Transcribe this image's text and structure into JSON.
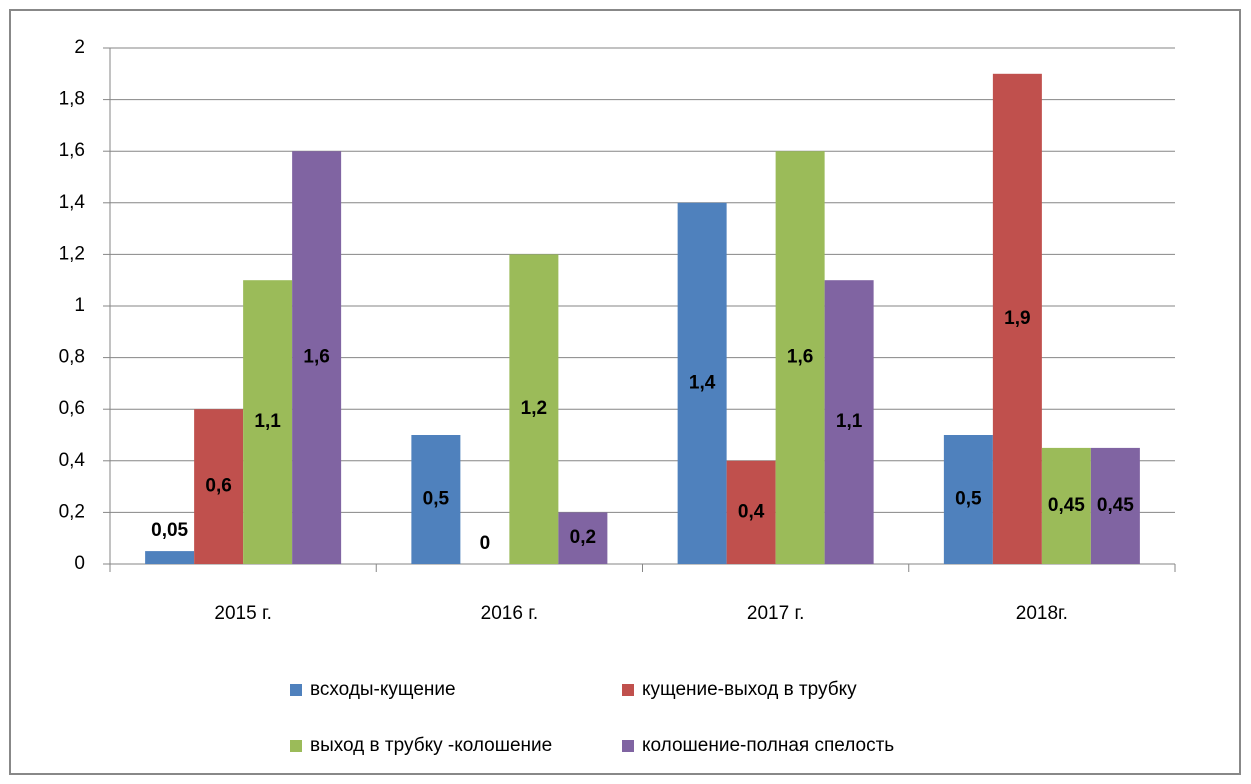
{
  "chart_data": {
    "type": "bar",
    "categories": [
      "2015 г.",
      "2016 г.",
      "2017 г.",
      "2018г."
    ],
    "series": [
      {
        "name": "всходы-кущение",
        "color": "#4f81bd",
        "values": [
          0.05,
          0.5,
          1.4,
          0.5
        ],
        "value_labels": [
          "0,05",
          "0,5",
          "1,4",
          "0,5"
        ]
      },
      {
        "name": "кущение-выход в трубку",
        "color": "#c0504d",
        "values": [
          0.6,
          0,
          0.4,
          1.9
        ],
        "value_labels": [
          "0,6",
          "0",
          "0,4",
          "1,9"
        ]
      },
      {
        "name": "выход в трубку -колошение",
        "color": "#9bbb59",
        "values": [
          1.1,
          1.2,
          1.6,
          0.45
        ],
        "value_labels": [
          "1,1",
          "1,2",
          "1,6",
          "0,45"
        ]
      },
      {
        "name": "колошение-полная спелость",
        "color": "#8064a2",
        "values": [
          1.6,
          0.2,
          1.1,
          0.45
        ],
        "value_labels": [
          "1,6",
          "0,2",
          "1,1",
          "0,45"
        ]
      }
    ],
    "ylim": [
      0,
      2
    ],
    "yticks": [
      0,
      {
        "value": 0.2,
        "label": "0,2"
      },
      {
        "value": 0.4,
        "label": "0,4"
      },
      {
        "value": 0.6,
        "label": "0,6"
      },
      {
        "value": 0.8,
        "label": "0,8"
      },
      1,
      {
        "value": 1.2,
        "label": "1,2"
      },
      {
        "value": 1.4,
        "label": "1,4"
      },
      {
        "value": 1.6,
        "label": "1,6"
      },
      {
        "value": 1.8,
        "label": "1,8"
      },
      2
    ],
    "grid": true,
    "legend": "bottom"
  }
}
